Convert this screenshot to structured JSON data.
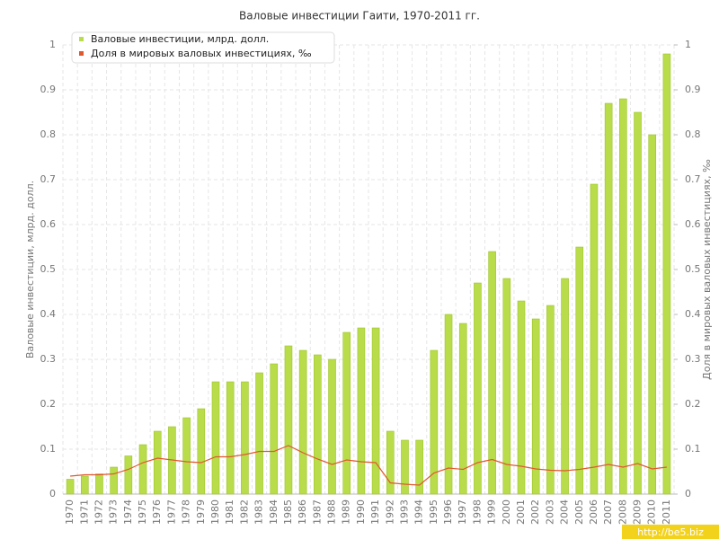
{
  "chart_data": {
    "type": "bar-line",
    "title": "Валовые инвестиции Гаити, 1970-2011 гг.",
    "y_label": "Валовые инвестиции, млрд. долл.",
    "y2_label": "Доля в мировых валовых инвестициях, ‰",
    "watermark": "http://be5.biz",
    "categories": [
      "1970",
      "1971",
      "1972",
      "1973",
      "1974",
      "1975",
      "1976",
      "1977",
      "1978",
      "1979",
      "1980",
      "1981",
      "1982",
      "1983",
      "1984",
      "1985",
      "1986",
      "1987",
      "1988",
      "1989",
      "1990",
      "1991",
      "1992",
      "1993",
      "1994",
      "1995",
      "1996",
      "1997",
      "1998",
      "1999",
      "2000",
      "2001",
      "2002",
      "2003",
      "2004",
      "2005",
      "2006",
      "2007",
      "2008",
      "2009",
      "2010",
      "2011"
    ],
    "series": [
      {
        "name": "Валовые инвестиции, млрд. долл.",
        "type": "bar",
        "color": "#b9dc4a",
        "values": [
          0.033,
          0.04,
          0.045,
          0.06,
          0.085,
          0.11,
          0.14,
          0.15,
          0.17,
          0.19,
          0.25,
          0.25,
          0.25,
          0.27,
          0.29,
          0.33,
          0.32,
          0.31,
          0.3,
          0.36,
          0.37,
          0.37,
          0.14,
          0.12,
          0.12,
          0.32,
          0.4,
          0.38,
          0.47,
          0.54,
          0.48,
          0.43,
          0.39,
          0.42,
          0.48,
          0.55,
          0.69,
          0.87,
          0.88,
          0.85,
          0.8,
          0.98
        ]
      },
      {
        "name": "Доля в мировых валовых инвестициях, ‰",
        "type": "line",
        "axis": "y2",
        "color": "#e0582e",
        "values": [
          0.04,
          0.043,
          0.043,
          0.045,
          0.055,
          0.07,
          0.08,
          0.076,
          0.072,
          0.07,
          0.083,
          0.083,
          0.088,
          0.095,
          0.095,
          0.108,
          0.092,
          0.078,
          0.066,
          0.076,
          0.072,
          0.07,
          0.025,
          0.022,
          0.02,
          0.047,
          0.058,
          0.055,
          0.07,
          0.077,
          0.066,
          0.062,
          0.056,
          0.053,
          0.052,
          0.055,
          0.06,
          0.066,
          0.06,
          0.068,
          0.056,
          0.06
        ]
      }
    ],
    "ylim": [
      0,
      1
    ],
    "yticks": [
      0,
      0.1,
      0.2,
      0.3,
      0.4,
      0.5,
      0.6,
      0.7,
      0.8,
      0.9,
      1
    ],
    "y2lim": [
      0,
      1
    ],
    "y2ticks": [
      0,
      0.1,
      0.2,
      0.3,
      0.4,
      0.5,
      0.6,
      0.7,
      0.8,
      0.9,
      1
    ],
    "grid": true,
    "legend": "top-left"
  }
}
